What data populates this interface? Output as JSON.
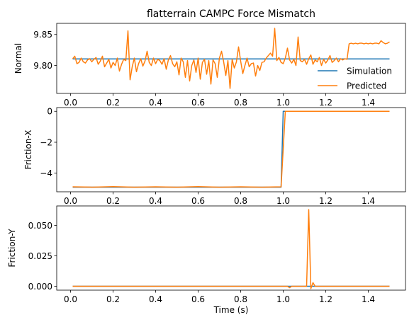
{
  "title": "flatterrain CAMPC Force Mismatch",
  "colors": {
    "simulation": "#1f77b4",
    "predicted": "#ff7f0e",
    "axis": "#000000"
  },
  "chart_data": [
    {
      "type": "line",
      "ylabel": "Normal",
      "xlabel": "",
      "xlim": [
        -0.065,
        1.575
      ],
      "ylim": [
        9.755,
        9.868
      ],
      "xticks": [
        0.0,
        0.2,
        0.4,
        0.6,
        0.8,
        1.0,
        1.2,
        1.4
      ],
      "xtick_labels": [
        "0.0",
        "0.2",
        "0.4",
        "0.6",
        "0.8",
        "1.0",
        "1.2",
        "1.4"
      ],
      "yticks": [
        9.8,
        9.85
      ],
      "ytick_labels": [
        "9.80",
        "9.85"
      ],
      "legend": {
        "position": "lower right",
        "entries": [
          "Simulation",
          "Predicted"
        ]
      },
      "series": [
        {
          "name": "Simulation",
          "x": [
            0.01,
            1.5
          ],
          "y": [
            9.8107,
            9.8107
          ]
        },
        {
          "name": "Predicted",
          "x": [
            0.01,
            0.02,
            0.03,
            0.04,
            0.05,
            0.06,
            0.07,
            0.08,
            0.09,
            0.1,
            0.11,
            0.12,
            0.13,
            0.14,
            0.15,
            0.16,
            0.17,
            0.18,
            0.19,
            0.2,
            0.21,
            0.22,
            0.23,
            0.24,
            0.25,
            0.26,
            0.27,
            0.28,
            0.29,
            0.3,
            0.31,
            0.32,
            0.33,
            0.34,
            0.35,
            0.36,
            0.37,
            0.38,
            0.39,
            0.4,
            0.41,
            0.42,
            0.43,
            0.44,
            0.45,
            0.46,
            0.47,
            0.48,
            0.49,
            0.5,
            0.51,
            0.52,
            0.53,
            0.54,
            0.55,
            0.56,
            0.57,
            0.58,
            0.59,
            0.6,
            0.61,
            0.62,
            0.63,
            0.64,
            0.65,
            0.66,
            0.67,
            0.68,
            0.69,
            0.7,
            0.71,
            0.72,
            0.73,
            0.74,
            0.75,
            0.76,
            0.77,
            0.78,
            0.79,
            0.8,
            0.81,
            0.82,
            0.83,
            0.84,
            0.85,
            0.86,
            0.87,
            0.88,
            0.89,
            0.9,
            0.91,
            0.92,
            0.93,
            0.94,
            0.95,
            0.96,
            0.97,
            0.98,
            0.99,
            1.0,
            1.01,
            1.02,
            1.03,
            1.04,
            1.05,
            1.06,
            1.07,
            1.08,
            1.09,
            1.1,
            1.11,
            1.12,
            1.13,
            1.14,
            1.15,
            1.16,
            1.17,
            1.18,
            1.19,
            1.2,
            1.21,
            1.22,
            1.23,
            1.24,
            1.25,
            1.26,
            1.27,
            1.28,
            1.29,
            1.3,
            1.31,
            1.32,
            1.33,
            1.34,
            1.35,
            1.36,
            1.37,
            1.38,
            1.39,
            1.4,
            1.41,
            1.42,
            1.43,
            1.44,
            1.45,
            1.46,
            1.47,
            1.48,
            1.49,
            1.5
          ],
          "y": [
            9.811,
            9.815,
            9.803,
            9.805,
            9.812,
            9.806,
            9.804,
            9.809,
            9.811,
            9.806,
            9.81,
            9.813,
            9.802,
            9.807,
            9.815,
            9.798,
            9.804,
            9.81,
            9.796,
            9.805,
            9.8,
            9.812,
            9.791,
            9.802,
            9.81,
            9.808,
            9.856,
            9.777,
            9.798,
            9.812,
            9.79,
            9.803,
            9.811,
            9.799,
            9.807,
            9.823,
            9.805,
            9.8,
            9.812,
            9.803,
            9.81,
            9.808,
            9.802,
            9.811,
            9.794,
            9.809,
            9.816,
            9.803,
            9.798,
            9.806,
            9.785,
            9.812,
            9.806,
            9.781,
            9.808,
            9.775,
            9.8,
            9.809,
            9.789,
            9.812,
            9.778,
            9.805,
            9.81,
            9.786,
            9.808,
            9.77,
            9.809,
            9.803,
            9.781,
            9.812,
            9.823,
            9.806,
            9.784,
            9.808,
            9.763,
            9.81,
            9.796,
            9.806,
            9.83,
            9.807,
            9.787,
            9.8,
            9.812,
            9.798,
            9.803,
            9.804,
            9.783,
            9.8,
            9.792,
            9.805,
            9.806,
            9.812,
            9.816,
            9.82,
            9.815,
            9.86,
            9.808,
            9.813,
            9.805,
            9.803,
            9.812,
            9.828,
            9.809,
            9.804,
            9.81,
            9.8,
            9.846,
            9.808,
            9.806,
            9.81,
            9.802,
            9.811,
            9.817,
            9.802,
            9.809,
            9.806,
            9.813,
            9.8,
            9.81,
            9.804,
            9.809,
            9.816,
            9.805,
            9.808,
            9.812,
            9.806,
            9.811,
            9.809,
            9.811,
            9.81,
            9.835,
            9.836,
            9.835,
            9.836,
            9.835,
            9.836,
            9.836,
            9.835,
            9.836,
            9.835,
            9.836,
            9.835,
            9.836,
            9.836,
            9.835,
            9.84,
            9.837,
            9.835,
            9.836,
            9.838
          ]
        }
      ]
    },
    {
      "type": "line",
      "ylabel": "Friction-X",
      "xlabel": "",
      "xlim": [
        -0.065,
        1.575
      ],
      "ylim": [
        -5.2,
        0.24
      ],
      "xticks": [
        0.0,
        0.2,
        0.4,
        0.6,
        0.8,
        1.0,
        1.2,
        1.4
      ],
      "xtick_labels": [
        "0.0",
        "0.2",
        "0.4",
        "0.6",
        "0.8",
        "1.0",
        "1.2",
        "1.4"
      ],
      "yticks": [
        -4,
        -2,
        0
      ],
      "ytick_labels": [
        "−4",
        "−2",
        "0"
      ],
      "series": [
        {
          "name": "Simulation",
          "x": [
            0.01,
            0.99,
            1.0,
            1.5
          ],
          "y": [
            -4.9,
            -4.9,
            0.0,
            0.0
          ]
        },
        {
          "name": "Predicted",
          "x": [
            0.01,
            0.1,
            0.2,
            0.3,
            0.4,
            0.5,
            0.6,
            0.7,
            0.8,
            0.9,
            0.99,
            1.01,
            1.1,
            1.2,
            1.3,
            1.4,
            1.5
          ],
          "y": [
            -4.88,
            -4.9,
            -4.87,
            -4.9,
            -4.88,
            -4.9,
            -4.87,
            -4.9,
            -4.88,
            -4.9,
            -4.88,
            0.0,
            0.0,
            0.0,
            0.0,
            0.0,
            0.0
          ]
        }
      ]
    },
    {
      "type": "line",
      "ylabel": "Friction-Y",
      "xlabel": "Time (s)",
      "xlim": [
        -0.065,
        1.575
      ],
      "ylim": [
        -0.0032,
        0.066
      ],
      "xticks": [
        0.0,
        0.2,
        0.4,
        0.6,
        0.8,
        1.0,
        1.2,
        1.4
      ],
      "xtick_labels": [
        "0.0",
        "0.2",
        "0.4",
        "0.6",
        "0.8",
        "1.0",
        "1.2",
        "1.4"
      ],
      "yticks": [
        0.0,
        0.025,
        0.05
      ],
      "ytick_labels": [
        "0.000",
        "0.025",
        "0.050"
      ],
      "series": [
        {
          "name": "Simulation",
          "x": [
            0.01,
            1.5
          ],
          "y": [
            0.0,
            0.0
          ]
        },
        {
          "name": "Predicted",
          "x": [
            0.01,
            1.02,
            1.03,
            1.04,
            1.1,
            1.11,
            1.12,
            1.13,
            1.14,
            1.15,
            1.5
          ],
          "y": [
            0.0,
            0.0,
            -0.0012,
            0.0,
            0.0,
            0.0,
            0.063,
            -0.002,
            0.003,
            0.0,
            0.0
          ]
        }
      ]
    }
  ]
}
